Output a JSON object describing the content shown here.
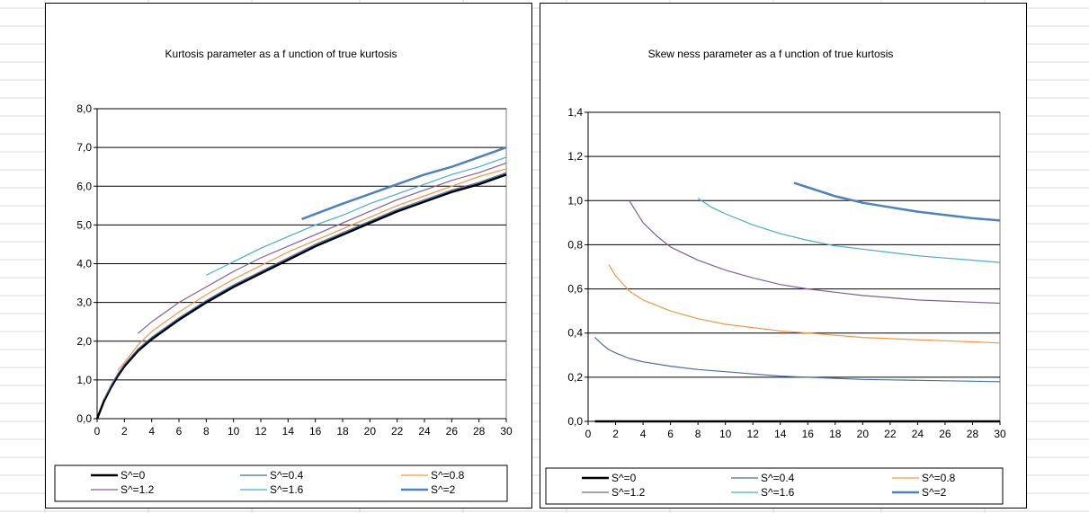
{
  "colors": {
    "s0": "#000000",
    "s04": "#4a6fa5",
    "s08": "#f79646",
    "s12": "#7f5f9a",
    "s16": "#4bacc6",
    "s2": "#4f81bd",
    "gridline": "#000000",
    "sheet_grid": "#d9d9d9"
  },
  "chart_data": [
    {
      "type": "line",
      "title": "Kurtosis parameter as a f unction of true kurtosis",
      "xlim": [
        0,
        30
      ],
      "ylim": [
        0,
        8
      ],
      "x_ticks": [
        "0",
        "2",
        "4",
        "6",
        "8",
        "10",
        "12",
        "14",
        "16",
        "18",
        "20",
        "22",
        "24",
        "26",
        "28",
        "30"
      ],
      "y_ticks": [
        "0,0",
        "1,0",
        "2,0",
        "3,0",
        "4,0",
        "5,0",
        "6,0",
        "7,0",
        "8,0"
      ],
      "grid": "horizontal",
      "legend_position": "bottom",
      "series": [
        {
          "name": "S^=0",
          "color": "#000000",
          "width": 2.5,
          "x": [
            0,
            0.5,
            1,
            1.5,
            2,
            3,
            4,
            6,
            8,
            10,
            12,
            14,
            16,
            18,
            20,
            22,
            24,
            26,
            28,
            30
          ],
          "y": [
            0,
            0.45,
            0.8,
            1.1,
            1.35,
            1.75,
            2.05,
            2.55,
            3.0,
            3.4,
            3.75,
            4.1,
            4.45,
            4.75,
            5.05,
            5.35,
            5.6,
            5.85,
            6.05,
            6.3
          ]
        },
        {
          "name": "S^=0.4",
          "color": "#4a6fa5",
          "width": 1.2,
          "x": [
            0.5,
            1,
            1.5,
            2,
            3,
            4,
            6,
            8,
            10,
            12,
            14,
            16,
            18,
            20,
            22,
            24,
            26,
            28,
            30
          ],
          "y": [
            0.5,
            0.85,
            1.15,
            1.4,
            1.8,
            2.1,
            2.6,
            3.05,
            3.45,
            3.8,
            4.15,
            4.5,
            4.8,
            5.1,
            5.4,
            5.65,
            5.9,
            6.1,
            6.35
          ]
        },
        {
          "name": "S^=0.8",
          "color": "#f79646",
          "width": 1.2,
          "x": [
            1.5,
            2,
            3,
            4,
            6,
            8,
            10,
            12,
            14,
            16,
            18,
            20,
            22,
            24,
            26,
            28,
            30
          ],
          "y": [
            1.25,
            1.45,
            1.9,
            2.25,
            2.75,
            3.2,
            3.6,
            3.95,
            4.3,
            4.6,
            4.9,
            5.2,
            5.5,
            5.75,
            6.0,
            6.25,
            6.45
          ]
        },
        {
          "name": "S^=1.2",
          "color": "#7f5f9a",
          "width": 1.2,
          "x": [
            3,
            4,
            6,
            8,
            10,
            12,
            14,
            16,
            18,
            20,
            22,
            24,
            26,
            28,
            30
          ],
          "y": [
            2.2,
            2.5,
            3.0,
            3.4,
            3.8,
            4.15,
            4.45,
            4.75,
            5.05,
            5.35,
            5.65,
            5.9,
            6.15,
            6.35,
            6.6
          ]
        },
        {
          "name": "S^=1.6",
          "color": "#4bacc6",
          "width": 1.2,
          "x": [
            8,
            10,
            12,
            14,
            16,
            18,
            20,
            22,
            24,
            26,
            28,
            30
          ],
          "y": [
            3.7,
            4.05,
            4.4,
            4.7,
            5.0,
            5.25,
            5.55,
            5.8,
            6.05,
            6.3,
            6.5,
            6.75
          ]
        },
        {
          "name": "S^=2",
          "color": "#4f81bd",
          "width": 2.5,
          "x": [
            15,
            18,
            20,
            22,
            24,
            26,
            28,
            30
          ],
          "y": [
            5.15,
            5.55,
            5.8,
            6.05,
            6.3,
            6.5,
            6.75,
            7.0
          ]
        }
      ]
    },
    {
      "type": "line",
      "title": "Skew ness parameter as a f unction of true kurtosis",
      "xlim": [
        0,
        30
      ],
      "ylim": [
        0,
        1.4
      ],
      "x_ticks": [
        "0",
        "2",
        "4",
        "6",
        "8",
        "10",
        "12",
        "14",
        "16",
        "18",
        "20",
        "22",
        "24",
        "26",
        "28",
        "30"
      ],
      "y_ticks": [
        "0,0",
        "0,2",
        "0,4",
        "0,6",
        "0,8",
        "1,0",
        "1,2",
        "1,4"
      ],
      "grid": "horizontal",
      "legend_position": "bottom",
      "series": [
        {
          "name": "S^=0",
          "color": "#000000",
          "width": 2.5,
          "x": [
            0.5,
            30
          ],
          "y": [
            0,
            0
          ]
        },
        {
          "name": "S^=0.4",
          "color": "#4a6fa5",
          "width": 1.2,
          "x": [
            0.5,
            1,
            1.5,
            2,
            3,
            4,
            6,
            8,
            10,
            12,
            14,
            16,
            18,
            20,
            22,
            24,
            26,
            28,
            30
          ],
          "y": [
            0.38,
            0.35,
            0.325,
            0.31,
            0.285,
            0.27,
            0.25,
            0.235,
            0.225,
            0.215,
            0.205,
            0.2,
            0.195,
            0.19,
            0.188,
            0.186,
            0.184,
            0.182,
            0.18
          ]
        },
        {
          "name": "S^=0.8",
          "color": "#f79646",
          "width": 1.2,
          "x": [
            1.5,
            2,
            3,
            4,
            6,
            8,
            10,
            12,
            14,
            16,
            18,
            20,
            22,
            24,
            26,
            28,
            30
          ],
          "y": [
            0.71,
            0.66,
            0.59,
            0.55,
            0.5,
            0.465,
            0.44,
            0.425,
            0.41,
            0.4,
            0.39,
            0.38,
            0.375,
            0.37,
            0.365,
            0.36,
            0.355
          ]
        },
        {
          "name": "S^=1.2",
          "color": "#7f5f9a",
          "width": 1.2,
          "x": [
            3,
            4,
            5,
            6,
            8,
            10,
            12,
            14,
            16,
            18,
            20,
            22,
            24,
            26,
            28,
            30
          ],
          "y": [
            1.0,
            0.9,
            0.84,
            0.79,
            0.73,
            0.685,
            0.65,
            0.62,
            0.6,
            0.585,
            0.57,
            0.56,
            0.55,
            0.545,
            0.54,
            0.535
          ]
        },
        {
          "name": "S^=1.6",
          "color": "#4bacc6",
          "width": 1.2,
          "x": [
            8,
            9,
            10,
            12,
            14,
            16,
            18,
            20,
            22,
            24,
            26,
            28,
            30
          ],
          "y": [
            1.01,
            0.97,
            0.94,
            0.89,
            0.85,
            0.82,
            0.795,
            0.78,
            0.765,
            0.75,
            0.74,
            0.73,
            0.72
          ]
        },
        {
          "name": "S^=2",
          "color": "#4f81bd",
          "width": 2.5,
          "x": [
            15,
            16,
            18,
            20,
            22,
            24,
            26,
            28,
            30
          ],
          "y": [
            1.08,
            1.06,
            1.02,
            0.99,
            0.97,
            0.95,
            0.935,
            0.92,
            0.91
          ]
        }
      ]
    }
  ]
}
